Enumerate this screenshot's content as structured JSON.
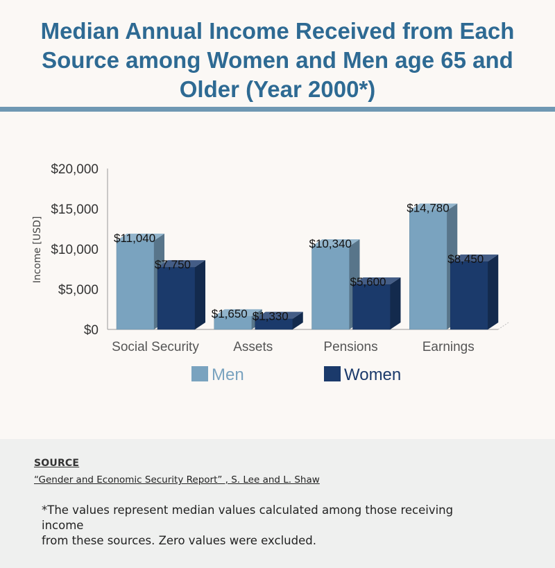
{
  "title_lines": [
    "Median Annual Income Received from Each",
    "Source among Women and Men age 65 and",
    "Older (Year 2000*)"
  ],
  "source": {
    "heading": "SOURCE",
    "link_text": "“Gender and Economic Security Report” , S. Lee and L. Shaw"
  },
  "footnote_lines": [
    "*The values represent median values calculated among those receiving income",
    "from these sources. Zero values were excluded."
  ],
  "colors": {
    "title": "#2e6a93",
    "men": "#7aa3bf",
    "women": "#1b3a6b",
    "rule": "#6f98b3"
  },
  "chart_data": {
    "type": "bar",
    "title": "",
    "xlabel": "",
    "ylabel": "Income [USD]",
    "categories": [
      "Social Security",
      "Assets",
      "Pensions",
      "Earnings"
    ],
    "series": [
      {
        "name": "Men",
        "values": [
          11040,
          1650,
          10340,
          14780
        ],
        "labels": [
          "$11,040",
          "$1,650",
          "$10,340",
          "$14,780"
        ]
      },
      {
        "name": "Women",
        "values": [
          7750,
          1330,
          5600,
          8450
        ],
        "labels": [
          "$7,750",
          "$1,330",
          "$5,600",
          "$8,450"
        ]
      }
    ],
    "ylim": [
      0,
      20000
    ],
    "yticks": [
      0,
      5000,
      10000,
      15000,
      20000
    ],
    "ytick_labels": [
      "$0",
      "$5,000",
      "$10,000",
      "$15,000",
      "$20,000"
    ],
    "legend_position": "bottom",
    "style": "3d"
  }
}
